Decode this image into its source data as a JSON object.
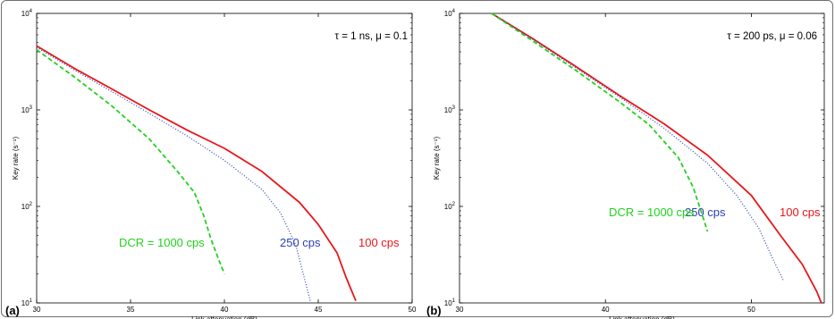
{
  "figure": {
    "panel_labels": [
      "(a)",
      "(b)"
    ]
  },
  "chart_data": [
    {
      "type": "line",
      "panel": "(a)",
      "annotation": "τ = 1 ns, μ = 0.1",
      "xlabel": "Link attenuation (dB)",
      "ylabel": "Key rate (s⁻¹)",
      "xlim": [
        30,
        50
      ],
      "ylim": [
        10,
        10000
      ],
      "yscale": "log",
      "x_ticks": [
        "30",
        "35",
        "40",
        "45",
        "50"
      ],
      "y_ticks": [
        {
          "base": "10",
          "exp": "1"
        },
        {
          "base": "10",
          "exp": "2"
        },
        {
          "base": "10",
          "exp": "3"
        },
        {
          "base": "10",
          "exp": "4"
        }
      ],
      "grid": false,
      "series": [
        {
          "name": "100 cps",
          "color": "#e8161b",
          "style": "solid",
          "points": [
            [
              30,
              4600
            ],
            [
              32,
              2700
            ],
            [
              34,
              1650
            ],
            [
              36,
              1000
            ],
            [
              38,
              620
            ],
            [
              40,
              400
            ],
            [
              42,
              230
            ],
            [
              44,
              110
            ],
            [
              45,
              65
            ],
            [
              46,
              33
            ],
            [
              46.5,
              18
            ],
            [
              47,
              10.5
            ]
          ]
        },
        {
          "name": "250 cps",
          "color": "#2b3fb5",
          "style": "dotted",
          "points": [
            [
              30,
              4450
            ],
            [
              32,
              2600
            ],
            [
              34,
              1550
            ],
            [
              36,
              920
            ],
            [
              38,
              540
            ],
            [
              40,
              300
            ],
            [
              42,
              150
            ],
            [
              43,
              85
            ],
            [
              43.8,
              40
            ],
            [
              44.2,
              20
            ],
            [
              44.6,
              10
            ]
          ]
        },
        {
          "name": "DCR = 1000 cps",
          "color": "#22d11d",
          "style": "dashed",
          "points": [
            [
              30,
              4200
            ],
            [
              32,
              2200
            ],
            [
              34,
              1100
            ],
            [
              36,
              500
            ],
            [
              37.5,
              230
            ],
            [
              38.4,
              140
            ],
            [
              38.9,
              80
            ],
            [
              39.3,
              45
            ],
            [
              39.7,
              28
            ],
            [
              40,
              20
            ]
          ]
        }
      ]
    },
    {
      "type": "line",
      "panel": "(b)",
      "annotation": "τ = 200 ps, μ = 0.06",
      "xlabel": "Link attenuation (dB)",
      "ylabel": "Key rate (s⁻¹)",
      "xlim": [
        30,
        55
      ],
      "ylim": [
        10,
        10000
      ],
      "yscale": "log",
      "x_ticks": [
        "30",
        "40",
        "50"
      ],
      "y_ticks": [
        {
          "base": "10",
          "exp": "1"
        },
        {
          "base": "10",
          "exp": "2"
        },
        {
          "base": "10",
          "exp": "3"
        },
        {
          "base": "10",
          "exp": "4"
        }
      ],
      "grid": false,
      "series": [
        {
          "name": "100 cps",
          "color": "#e8161b",
          "style": "solid",
          "points": [
            [
              32.2,
              10000
            ],
            [
              35,
              5500
            ],
            [
              38,
              2800
            ],
            [
              41,
              1400
            ],
            [
              44,
              720
            ],
            [
              47,
              340
            ],
            [
              50,
              130
            ],
            [
              52,
              50
            ],
            [
              53.5,
              25
            ],
            [
              54.5,
              13
            ],
            [
              54.8,
              10
            ]
          ]
        },
        {
          "name": "250 cps",
          "color": "#2b3fb5",
          "style": "dotted",
          "points": [
            [
              32.2,
              10000
            ],
            [
              35,
              5400
            ],
            [
              38,
              2700
            ],
            [
              41,
              1350
            ],
            [
              44,
              650
            ],
            [
              47,
              280
            ],
            [
              49,
              130
            ],
            [
              50.5,
              60
            ],
            [
              51.5,
              28
            ],
            [
              52.2,
              17
            ]
          ]
        },
        {
          "name": "DCR = 1000 cps",
          "color": "#22d11d",
          "style": "dashed",
          "points": [
            [
              32.2,
              10000
            ],
            [
              35,
              5200
            ],
            [
              38,
              2550
            ],
            [
              41,
              1200
            ],
            [
              43,
              700
            ],
            [
              45,
              320
            ],
            [
              46,
              160
            ],
            [
              46.6,
              85
            ],
            [
              47,
              55
            ]
          ]
        }
      ]
    }
  ]
}
